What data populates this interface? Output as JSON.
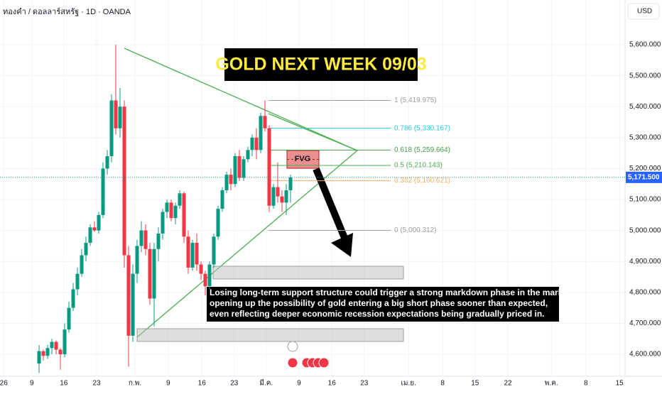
{
  "chart_data": {
    "type": "candlestick",
    "symbol": "ทองคำ / ดอลลาร์สหรัฐ · 1D · OANDA",
    "currency": "USD",
    "title": "GOLD NEXT WEEK 09/03",
    "fvg_label": "FVG",
    "note": [
      "Losing long-term support structure could trigger a strong markdown phase in the market,",
      "opening up the possibility of gold entering a big short phase sooner than expected,",
      "even reflecting deeper economic recession expectations being gradually priced in."
    ],
    "up_color": "#089981",
    "down_color": "#f23645",
    "x": [
      0,
      1,
      2,
      3,
      4,
      5,
      6,
      7,
      8,
      9,
      10,
      11,
      12,
      13,
      14,
      15,
      16,
      17,
      18,
      19,
      20,
      21,
      22,
      23,
      24,
      25,
      26,
      27,
      28,
      29,
      30,
      31,
      32,
      33,
      34,
      35,
      36,
      37,
      38,
      39,
      40,
      41,
      42,
      43,
      44,
      45,
      46,
      47,
      48,
      49,
      50,
      51,
      52,
      53,
      54,
      55,
      56,
      57,
      58,
      59
    ],
    "open": [
      4570,
      4610,
      4595,
      4620,
      4640,
      4615,
      4600,
      4680,
      4750,
      4810,
      4860,
      4920,
      4960,
      5010,
      5000,
      5050,
      5200,
      5240,
      5420,
      5330,
      5400,
      4920,
      4660,
      4860,
      4950,
      5000,
      4940,
      4780,
      4940,
      4990,
      5060,
      5090,
      5040,
      5080,
      5120,
      4980,
      4880,
      4960,
      4890,
      4860,
      4820,
      4890,
      4980,
      5070,
      5130,
      5180,
      5150,
      5240,
      5170,
      5230,
      5260,
      5300,
      5260,
      5370,
      5330,
      5080,
      5140,
      5110,
      5090,
      5130
    ],
    "high": [
      4630,
      4615,
      4630,
      4650,
      4645,
      4620,
      4700,
      4770,
      4830,
      4880,
      4940,
      4980,
      5020,
      5030,
      5060,
      5220,
      5260,
      5440,
      5600,
      5460,
      5420,
      4950,
      4890,
      4970,
      5030,
      5020,
      4960,
      4960,
      5010,
      5070,
      5100,
      5100,
      5090,
      5130,
      5125,
      5000,
      4970,
      4990,
      4900,
      4870,
      4900,
      4990,
      5080,
      5140,
      5190,
      5200,
      5250,
      5260,
      5240,
      5270,
      5310,
      5330,
      5380,
      5420,
      5340,
      5150,
      5220,
      5130,
      5150,
      5180
    ],
    "low": [
      4540,
      4580,
      4585,
      4600,
      4600,
      4550,
      4590,
      4670,
      4740,
      4790,
      4850,
      4900,
      4950,
      4995,
      4990,
      5040,
      5180,
      5220,
      5310,
      5300,
      4880,
      4560,
      4640,
      4830,
      4930,
      4920,
      4760,
      4690,
      4900,
      4970,
      5040,
      5030,
      5020,
      5070,
      4960,
      4860,
      4870,
      4870,
      4840,
      4790,
      4810,
      4880,
      4970,
      5060,
      5120,
      5130,
      5140,
      5160,
      5160,
      5220,
      5240,
      5230,
      5250,
      5320,
      5060,
      5070,
      5090,
      5060,
      5050,
      5090
    ],
    "close": [
      4610,
      4595,
      4620,
      4640,
      4615,
      4600,
      4680,
      4750,
      4810,
      4860,
      4920,
      4960,
      5010,
      5000,
      5050,
      5200,
      5240,
      5420,
      5330,
      5400,
      4920,
      4660,
      4860,
      4950,
      5000,
      4940,
      4780,
      4940,
      4990,
      5060,
      5090,
      5040,
      5080,
      5120,
      4980,
      4880,
      4960,
      4890,
      4860,
      4820,
      4890,
      4980,
      5070,
      5130,
      5180,
      5150,
      5240,
      5170,
      5230,
      5260,
      5300,
      5260,
      5370,
      5330,
      5080,
      5140,
      5110,
      5090,
      5130,
      5171.5
    ],
    "xlim": [
      -9.17,
      137.5
    ],
    "xticks": [
      {
        "value": -8.3,
        "label": "26"
      },
      {
        "value": -1.7,
        "label": "9"
      },
      {
        "value": 5.8,
        "label": "16"
      },
      {
        "value": 13.5,
        "label": "23"
      },
      {
        "value": 22.5,
        "label": "ก.พ."
      },
      {
        "value": 30.3,
        "label": "9"
      },
      {
        "value": 38.2,
        "label": "16"
      },
      {
        "value": 45.8,
        "label": "23"
      },
      {
        "value": 53.3,
        "label": "มี.ค."
      },
      {
        "value": 61,
        "label": "9"
      },
      {
        "value": 68.7,
        "label": "16"
      },
      {
        "value": 76.3,
        "label": "23"
      },
      {
        "value": 86.7,
        "label": "เม.ย."
      },
      {
        "value": 94.7,
        "label": "8"
      },
      {
        "value": 102.3,
        "label": "15"
      },
      {
        "value": 110,
        "label": "22"
      },
      {
        "value": 120.2,
        "label": "พ.ค."
      },
      {
        "value": 128.3,
        "label": "8"
      },
      {
        "value": 136.2,
        "label": "15"
      }
    ],
    "ylim": [
      4529,
      5744.5
    ],
    "yticks": [
      {
        "value": 4600,
        "label": "4,600.000"
      },
      {
        "value": 4700,
        "label": "4,700.000"
      },
      {
        "value": 4800,
        "label": "4,800.000"
      },
      {
        "value": 4900,
        "label": "4,900.000"
      },
      {
        "value": 5000,
        "label": "5,000.000"
      },
      {
        "value": 5100,
        "label": "5,100.000"
      },
      {
        "value": 5200,
        "label": "5,200.000"
      },
      {
        "value": 5300,
        "label": "5,300.000"
      },
      {
        "value": 5400,
        "label": "5,400.000"
      },
      {
        "value": 5500,
        "label": "5,500.000"
      },
      {
        "value": 5600,
        "label": "5,600.000"
      }
    ],
    "last_price": {
      "value": 5171.5,
      "label": "5,171.500"
    },
    "fib_levels": [
      {
        "label": "1 (5,419.975)",
        "value": 5419.975,
        "color": "#9e9e9e"
      },
      {
        "label": "0.786 (5,330.167)",
        "value": 5330.167,
        "color": "#26c6da"
      },
      {
        "label": "0.618 (5,259.664)",
        "value": 5259.664,
        "color": "#43a047"
      },
      {
        "label": "0.5 (5,210.143)",
        "value": 5210.143,
        "color": "#4caf50"
      },
      {
        "label": "0.382 (5,160.621)",
        "value": 5160.621,
        "color": "#f6b26b"
      },
      {
        "label": "0 (5,000.312)",
        "value": 5000.312,
        "color": "#9e9e9e"
      }
    ]
  }
}
